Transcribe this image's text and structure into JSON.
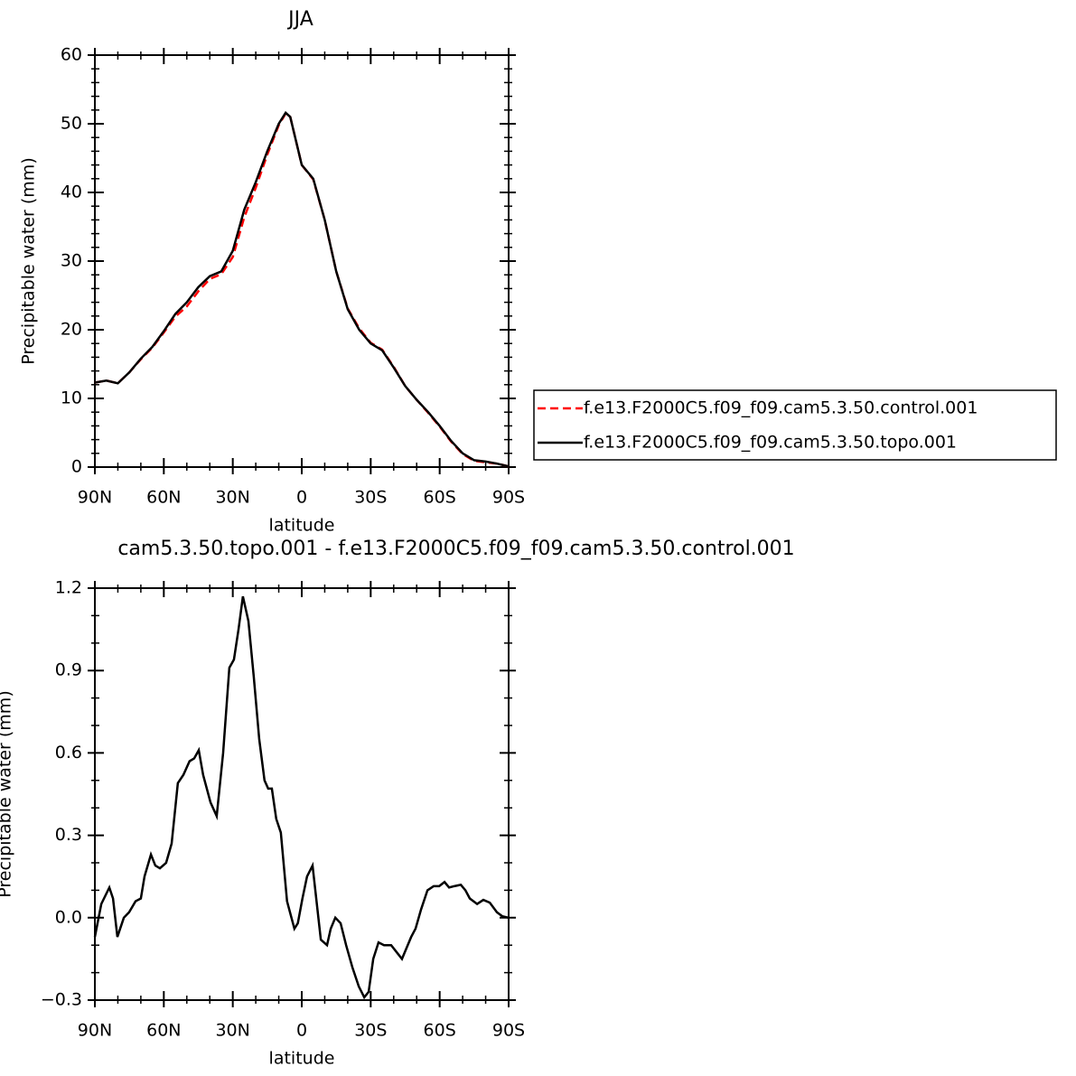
{
  "chart_data": [
    {
      "type": "line",
      "title": "JJA",
      "x_label": "latitude",
      "y_label": "Precipitable water (mm)",
      "x": [
        90,
        85,
        80,
        75,
        70,
        65,
        60,
        55,
        50,
        45,
        40,
        35,
        30,
        25,
        20,
        15,
        10,
        7,
        5,
        0,
        -5,
        -10,
        -15,
        -20,
        -25,
        -30,
        -35,
        -40,
        -45,
        -50,
        -55,
        -60,
        -65,
        -70,
        -75,
        -80,
        -85,
        -90
      ],
      "series": [
        {
          "name": "f.e13.F2000C5.f09_f09.cam5.3.50.control.001",
          "color": "#ff0000",
          "dash": "dashed",
          "values": [
            12.3,
            12.6,
            12.2,
            13.8,
            15.7,
            17.4,
            19.6,
            21.9,
            23.4,
            25.6,
            27.4,
            28.1,
            30.6,
            36.4,
            40.7,
            45.5,
            49.8,
            51.5,
            51.0,
            44.0,
            41.9,
            36.0,
            28.5,
            23.1,
            20.2,
            18.1,
            17.1,
            14.6,
            11.8,
            9.8,
            7.9,
            5.9,
            3.7,
            1.9,
            0.9,
            0.7,
            0.5,
            0.1
          ]
        },
        {
          "name": "f.e13.F2000C5.f09_f09.cam5.3.50.topo.001",
          "color": "#000000",
          "dash": "solid",
          "values": [
            12.3,
            12.6,
            12.2,
            13.8,
            15.8,
            17.5,
            19.8,
            22.3,
            24.0,
            26.2,
            27.8,
            28.5,
            31.5,
            37.5,
            41.5,
            46.0,
            50.0,
            51.6,
            51.0,
            44.0,
            42.0,
            36.0,
            28.5,
            23.0,
            20.0,
            18.0,
            17.0,
            14.5,
            11.8,
            9.8,
            8.0,
            6.0,
            3.8,
            2.0,
            1.0,
            0.8,
            0.5,
            0.1
          ]
        }
      ],
      "xlim": [
        90,
        -90
      ],
      "xticks": [
        {
          "value": 90,
          "label": "90N"
        },
        {
          "value": 60,
          "label": "60N"
        },
        {
          "value": 30,
          "label": "30N"
        },
        0,
        {
          "value": -30,
          "label": "30S"
        },
        {
          "value": -60,
          "label": "60S"
        },
        {
          "value": -90,
          "label": "90S"
        }
      ],
      "xminorticks": [
        80,
        70,
        50,
        40,
        20,
        10,
        -10,
        -20,
        -40,
        -50,
        -70,
        -80
      ],
      "ylim": [
        0,
        60
      ],
      "yticks": [
        0,
        10,
        20,
        30,
        40,
        50,
        60
      ],
      "yminorticks": [
        2,
        4,
        6,
        8,
        12,
        14,
        16,
        18,
        22,
        24,
        26,
        28,
        32,
        34,
        36,
        38,
        42,
        44,
        46,
        48,
        52,
        54,
        56,
        58
      ],
      "legend": "right"
    },
    {
      "type": "line",
      "title": "cam5.3.50.topo.001 - f.e13.F2000C5.f09_f09.cam5.3.50.control.001",
      "x_label": "latitude",
      "y_label": "Precipitable water (mm)",
      "x": [
        90,
        87.2,
        83.7,
        82.1,
        80.2,
        77.4,
        75.1,
        72.3,
        70.0,
        68.4,
        65.6,
        63.7,
        61.7,
        59.0,
        56.6,
        53.9,
        51.5,
        48.8,
        46.8,
        44.8,
        42.9,
        39.7,
        37.0,
        34.2,
        31.5,
        29.5,
        27.5,
        25.6,
        23.2,
        20.9,
        18.5,
        16.2,
        14.6,
        13.0,
        11.1,
        9.1,
        6.4,
        3.2,
        1.7,
        -0.3,
        -2.3,
        -4.7,
        -5.9,
        -8.3,
        -11.0,
        -12.6,
        -14.6,
        -16.9,
        -19.3,
        -22.0,
        -24.8,
        -27.2,
        -29.1,
        -31.1,
        -33.4,
        -35.8,
        -38.9,
        -41.7,
        -43.6,
        -45.6,
        -47.6,
        -49.5,
        -51.9,
        -54.7,
        -57.4,
        -59.8,
        -62.1,
        -64.1,
        -66.4,
        -69.2,
        -71.2,
        -73.1,
        -76.3,
        -79.0,
        -81.8,
        -84.9,
        -87.3,
        -90
      ],
      "values": [
        -0.07,
        0.05,
        0.11,
        0.07,
        -0.07,
        0.0,
        0.02,
        0.06,
        0.07,
        0.15,
        0.23,
        0.19,
        0.18,
        0.2,
        0.27,
        0.49,
        0.52,
        0.57,
        0.58,
        0.61,
        0.52,
        0.42,
        0.37,
        0.6,
        0.91,
        0.94,
        1.05,
        1.17,
        1.08,
        0.88,
        0.65,
        0.5,
        0.47,
        0.47,
        0.36,
        0.31,
        0.06,
        -0.04,
        -0.02,
        0.07,
        0.15,
        0.19,
        0.1,
        -0.08,
        -0.1,
        -0.04,
        0.0,
        -0.02,
        -0.1,
        -0.18,
        -0.25,
        -0.29,
        -0.27,
        -0.15,
        -0.09,
        -0.1,
        -0.1,
        -0.13,
        -0.15,
        -0.11,
        -0.07,
        -0.04,
        0.03,
        0.1,
        0.115,
        0.115,
        0.13,
        0.11,
        0.115,
        0.12,
        0.1,
        0.07,
        0.05,
        0.065,
        0.055,
        0.02,
        0.005,
        0.0
      ],
      "color": "#000000",
      "xlim": [
        90,
        -90
      ],
      "xticks": [
        {
          "value": 90,
          "label": "90N"
        },
        {
          "value": 60,
          "label": "60N"
        },
        {
          "value": 30,
          "label": "30N"
        },
        0,
        {
          "value": -30,
          "label": "30S"
        },
        {
          "value": -60,
          "label": "60S"
        },
        {
          "value": -90,
          "label": "90S"
        }
      ],
      "xminorticks": [
        80,
        70,
        50,
        40,
        20,
        10,
        -10,
        -20,
        -40,
        -50,
        -70,
        -80
      ],
      "ylim": [
        -0.3,
        1.2
      ],
      "yticks": [
        {
          "value": -0.3,
          "label": "−0.3"
        },
        {
          "value": 0,
          "label": "0.0"
        },
        0.3,
        0.6,
        0.9,
        1.2
      ],
      "yminorticks": [
        -0.2,
        -0.1,
        0.1,
        0.2,
        0.4,
        0.5,
        0.7,
        0.8,
        1.0,
        1.1
      ]
    }
  ]
}
